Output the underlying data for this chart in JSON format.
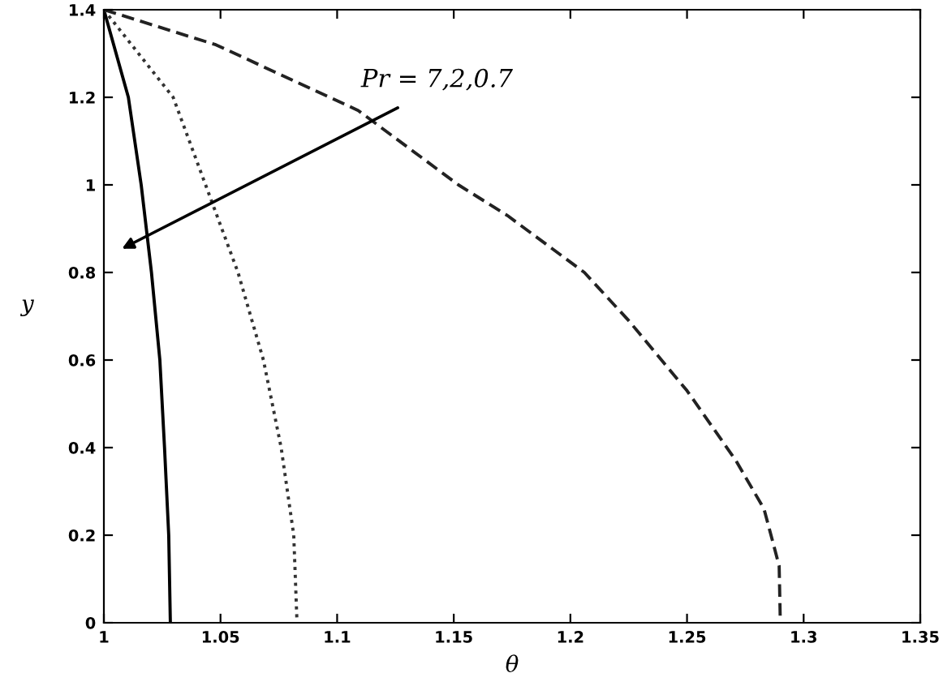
{
  "chart_data": {
    "type": "line",
    "xlabel": "θ",
    "ylabel": "y",
    "annotations": [
      "Pr = 7,2,0.7"
    ],
    "series": [
      {
        "color": "#000000",
        "line_style": "solid",
        "x": [
          1.0,
          1.0105,
          1.016,
          1.0204,
          1.024,
          1.026,
          1.0278,
          1.0285
        ],
        "values": [
          1.4,
          1.2,
          1.0,
          0.8,
          0.6,
          0.4,
          0.2,
          0.0
        ]
      },
      {
        "color": "#333333",
        "line_style": "dotted",
        "x": [
          1.0,
          1.0297,
          1.0436,
          1.0575,
          1.0684,
          1.076,
          1.0814,
          1.0828
        ],
        "values": [
          1.4,
          1.2,
          1.0,
          0.8,
          0.6,
          0.4,
          0.2,
          0.0
        ]
      },
      {
        "color": "#222222",
        "line_style": "dashed",
        "x": [
          1.0,
          1.048,
          1.109,
          1.152,
          1.173,
          1.206,
          1.225,
          1.25,
          1.271,
          1.283,
          1.2895,
          1.29
        ],
        "values": [
          1.4,
          1.32,
          1.17,
          1.0,
          0.93,
          0.8,
          0.69,
          0.53,
          0.37,
          0.26,
          0.13,
          0.0
        ]
      }
    ],
    "xlim": [
      1,
      1.35
    ],
    "xticks": [
      1,
      1.05,
      1.1,
      1.15,
      1.2,
      1.25,
      1.3,
      1.35
    ],
    "ylim": [
      0,
      1.4
    ],
    "yticks": [
      0,
      0.2,
      0.4,
      0.6,
      0.8,
      1,
      1.2,
      1.4
    ],
    "grid": false,
    "legend": false
  }
}
